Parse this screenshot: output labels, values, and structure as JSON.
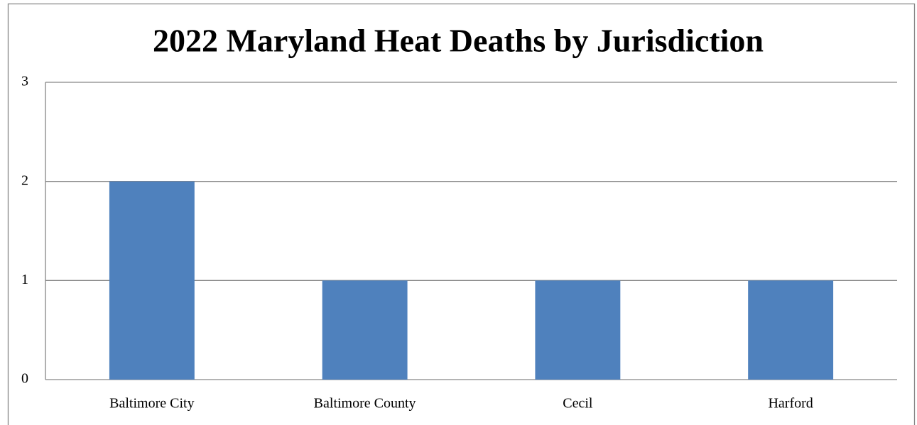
{
  "chart_data": {
    "type": "bar",
    "title": "2022 Maryland Heat Deaths by Jurisdiction",
    "categories": [
      "Baltimore City",
      "Baltimore County",
      "Cecil",
      "Harford"
    ],
    "values": [
      2,
      1,
      1,
      1
    ],
    "color": "#4f81bd",
    "ylim": [
      0,
      3
    ],
    "yticks": [
      0,
      1,
      2,
      3
    ],
    "grid": true
  }
}
